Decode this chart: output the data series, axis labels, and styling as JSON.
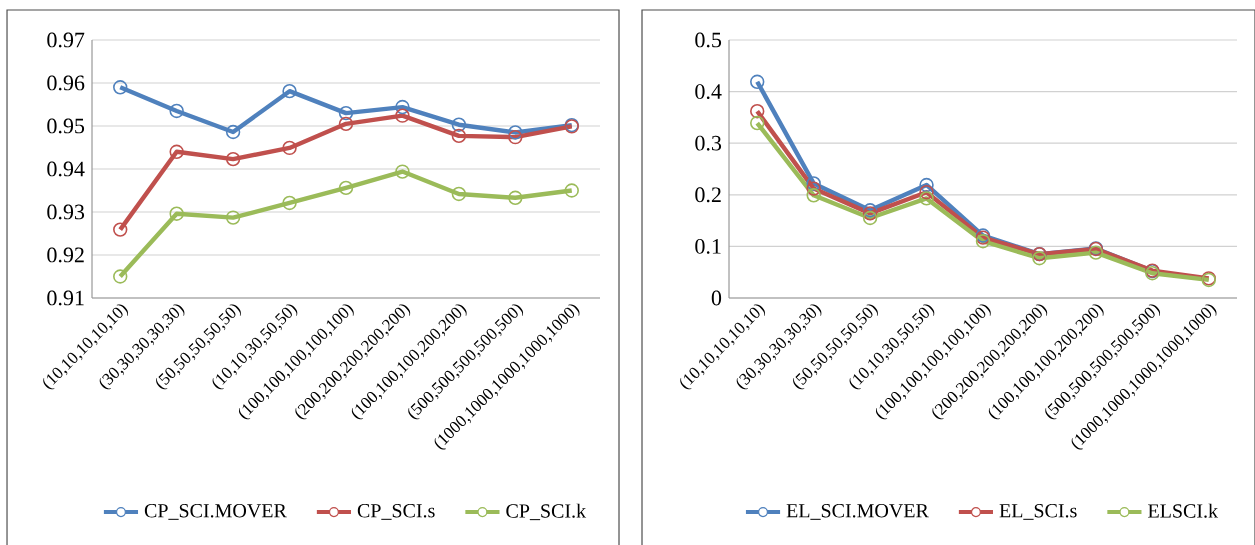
{
  "chart_data": [
    {
      "type": "line",
      "categories": [
        "(10,10,10,10,10)",
        "(30,30,30,30,30)",
        "(50,50,50,50,50)",
        "(10,10,30,50,50)",
        "(100,100,100,100,100)",
        "(200,200,200,200,200)",
        "(100,100,100,200,200)",
        "(500,500,500,500,500)",
        "(1000,1000,1000,1000,1000)"
      ],
      "series": [
        {
          "name": "CP_SCI.MOVER",
          "color": "#4f81bd",
          "values": [
            0.959,
            0.9535,
            0.9486,
            0.9581,
            0.953,
            0.9544,
            0.9503,
            0.9485,
            0.9502
          ]
        },
        {
          "name": "CP_SCI.s",
          "color": "#c0504d",
          "values": [
            0.9259,
            0.944,
            0.9423,
            0.9449,
            0.9505,
            0.9524,
            0.9477,
            0.9474,
            0.9499
          ]
        },
        {
          "name": "CP_SCI.k",
          "color": "#9bbb59",
          "values": [
            0.915,
            0.9296,
            0.9287,
            0.9321,
            0.9356,
            0.9394,
            0.9342,
            0.9333,
            0.935
          ]
        }
      ],
      "ylim": [
        0.91,
        0.97
      ],
      "yticks": [
        0.91,
        0.92,
        0.93,
        0.94,
        0.95,
        0.96,
        0.97
      ],
      "grid": "y",
      "legend": "bottom",
      "marker": "circle"
    },
    {
      "type": "line",
      "categories": [
        "(10,10,10,10,10)",
        "(30,30,30,30,30)",
        "(50,50,50,50,50)",
        "(10,10,30,50,50)",
        "(100,100,100,100,100)",
        "(200,200,200,200,200)",
        "(100,100,100,200,200)",
        "(500,500,500,500,500)",
        "(1000,1000,1000,1000,1000)"
      ],
      "series": [
        {
          "name": "EL_SCI.MOVER",
          "color": "#4f81bd",
          "values": [
            0.419,
            0.222,
            0.17,
            0.219,
            0.121,
            0.085,
            0.096,
            0.052,
            null
          ]
        },
        {
          "name": "EL_SCI.s",
          "color": "#c0504d",
          "values": [
            0.362,
            0.212,
            0.164,
            0.205,
            0.117,
            0.085,
            0.095,
            0.053,
            0.038
          ]
        },
        {
          "name": "ELSCI.k",
          "color": "#9bbb59",
          "values": [
            0.339,
            0.199,
            0.155,
            0.193,
            0.11,
            0.077,
            0.088,
            0.048,
            0.035
          ]
        }
      ],
      "ylim": [
        0,
        0.5
      ],
      "yticks": [
        0,
        0.1,
        0.2,
        0.3,
        0.4,
        0.5
      ],
      "grid": "y",
      "legend": "bottom",
      "marker": "circle"
    }
  ]
}
